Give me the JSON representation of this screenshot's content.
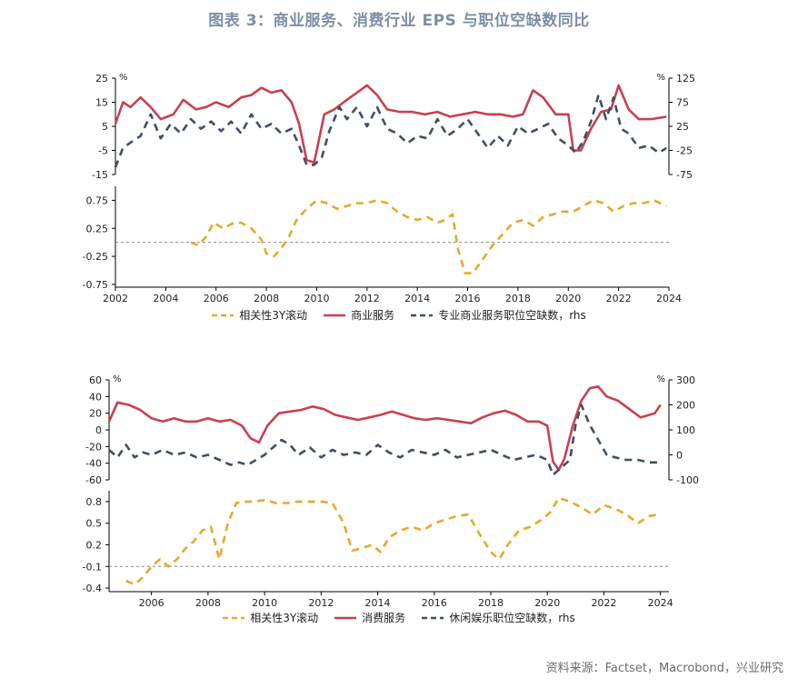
{
  "title": "图表 3：商业服务、消费行业 EPS 与职位空缺数同比",
  "source": "资料来源：Factset，Macrobond，兴业研究",
  "colors": {
    "corr": "#e7a82c",
    "eps": "#c94050",
    "jobs": "#3e4f66",
    "ref": "#888888"
  },
  "chart_data": [
    {
      "type": "line",
      "id": "chart1",
      "left_unit": "%",
      "right_unit": "%",
      "xticks": [
        "2002",
        "2004",
        "2006",
        "2008",
        "2010",
        "2012",
        "2014",
        "2016",
        "2018",
        "2020",
        "2022",
        "2024"
      ],
      "xlim": [
        2002,
        2024
      ],
      "top_panel": {
        "ylim": [
          -15,
          25
        ],
        "yticks": [
          "25",
          "15",
          "5",
          "-5",
          "-15"
        ],
        "y2lim": [
          -75,
          125
        ],
        "y2ticks": [
          "125",
          "75",
          "25",
          "-25",
          "-75"
        ],
        "series": [
          {
            "name": "商业服务",
            "axis": "left",
            "x": [
              2002.0,
              2002.3,
              2002.6,
              2003.0,
              2003.4,
              2003.8,
              2004.3,
              2004.7,
              2005.2,
              2005.6,
              2006.0,
              2006.5,
              2007.0,
              2007.4,
              2007.8,
              2008.2,
              2008.6,
              2009.0,
              2009.3,
              2009.6,
              2009.9,
              2010.3,
              2010.7,
              2011.2,
              2011.6,
              2012.0,
              2012.4,
              2012.8,
              2013.3,
              2013.8,
              2014.3,
              2014.8,
              2015.3,
              2015.8,
              2016.3,
              2016.8,
              2017.3,
              2017.8,
              2018.2,
              2018.6,
              2019.0,
              2019.5,
              2020.0,
              2020.2,
              2020.5,
              2020.9,
              2021.3,
              2021.7,
              2022.0,
              2022.4,
              2022.8,
              2023.3,
              2023.9
            ],
            "y": [
              6,
              15,
              13,
              17,
              13,
              8,
              10,
              16,
              12,
              13,
              15,
              13,
              17,
              18,
              21,
              19,
              20,
              15,
              6,
              -9,
              -10,
              10,
              12,
              16,
              19,
              22,
              18,
              12,
              11,
              11,
              10,
              11,
              9,
              10,
              11,
              10,
              10,
              9,
              10,
              20,
              17,
              10,
              10,
              -5,
              -5,
              4,
              11,
              12,
              22,
              12,
              8,
              8,
              9
            ]
          },
          {
            "name": "专业商业服务职位空缺数，rhs",
            "axis": "right",
            "x": [
              2002.0,
              2002.3,
              2002.7,
              2003.0,
              2003.4,
              2003.8,
              2004.2,
              2004.6,
              2005.0,
              2005.4,
              2005.8,
              2006.2,
              2006.6,
              2007.0,
              2007.4,
              2007.8,
              2008.2,
              2008.6,
              2009.0,
              2009.3,
              2009.6,
              2009.9,
              2010.2,
              2010.5,
              2010.9,
              2011.2,
              2011.6,
              2012.0,
              2012.4,
              2012.8,
              2013.2,
              2013.6,
              2014.0,
              2014.4,
              2014.8,
              2015.2,
              2015.6,
              2016.0,
              2016.4,
              2016.8,
              2017.2,
              2017.6,
              2018.0,
              2018.4,
              2018.8,
              2019.2,
              2019.6,
              2020.0,
              2020.3,
              2020.6,
              2020.9,
              2021.2,
              2021.5,
              2021.8,
              2022.1,
              2022.4,
              2022.8,
              2023.2,
              2023.6,
              2023.9
            ],
            "y": [
              -60,
              -20,
              -5,
              5,
              50,
              0,
              30,
              10,
              40,
              20,
              35,
              15,
              35,
              10,
              50,
              20,
              30,
              10,
              20,
              -15,
              -55,
              -55,
              -40,
              15,
              65,
              40,
              65,
              25,
              65,
              20,
              10,
              -10,
              5,
              0,
              40,
              5,
              20,
              40,
              10,
              -20,
              5,
              -15,
              25,
              10,
              20,
              30,
              0,
              -15,
              -30,
              -5,
              35,
              90,
              40,
              85,
              20,
              10,
              -20,
              -15,
              -30,
              -20
            ]
          }
        ]
      },
      "bottom_panel": {
        "ylim": [
          -0.8,
          1.0
        ],
        "yticks": [
          "0.75",
          "0.25",
          "-0.25",
          "-0.75"
        ],
        "reference_line": 0.0,
        "series": [
          {
            "name": "相关性3Y滚动",
            "axis": "left",
            "x": [
              2005.0,
              2005.3,
              2005.6,
              2005.9,
              2006.3,
              2006.7,
              2007.0,
              2007.4,
              2007.8,
              2008.0,
              2008.3,
              2008.6,
              2008.9,
              2009.2,
              2009.6,
              2010.0,
              2010.4,
              2010.8,
              2011.2,
              2011.6,
              2012.0,
              2012.4,
              2012.8,
              2013.2,
              2013.6,
              2014.0,
              2014.4,
              2014.8,
              2015.1,
              2015.4,
              2015.6,
              2015.9,
              2016.2,
              2016.6,
              2017.0,
              2017.4,
              2017.8,
              2018.2,
              2018.6,
              2019.0,
              2019.4,
              2019.8,
              2020.2,
              2020.6,
              2021.0,
              2021.4,
              2021.8,
              2022.2,
              2022.6,
              2023.0,
              2023.4,
              2023.9
            ],
            "y": [
              0.0,
              -0.05,
              0.1,
              0.35,
              0.25,
              0.35,
              0.35,
              0.25,
              0.05,
              -0.2,
              -0.25,
              -0.1,
              0.1,
              0.4,
              0.6,
              0.75,
              0.7,
              0.6,
              0.65,
              0.7,
              0.7,
              0.75,
              0.7,
              0.55,
              0.45,
              0.4,
              0.45,
              0.35,
              0.4,
              0.5,
              -0.1,
              -0.55,
              -0.55,
              -0.3,
              -0.05,
              0.15,
              0.35,
              0.4,
              0.3,
              0.45,
              0.5,
              0.55,
              0.55,
              0.65,
              0.75,
              0.7,
              0.55,
              0.65,
              0.7,
              0.7,
              0.75,
              0.65
            ]
          }
        ]
      },
      "legend": [
        "相关性3Y滚动",
        "商业服务",
        "专业商业服务职位空缺数，rhs"
      ]
    },
    {
      "type": "line",
      "id": "chart2",
      "left_unit": "%",
      "right_unit": "%",
      "xticks": [
        "2006",
        "2008",
        "2010",
        "2012",
        "2014",
        "2016",
        "2018",
        "2020",
        "2022",
        "2024"
      ],
      "xlim": [
        2004.5,
        2024.3
      ],
      "top_panel": {
        "ylim": [
          -60,
          60
        ],
        "yticks": [
          "60",
          "40",
          "20",
          "0",
          "-20",
          "-40",
          "-60"
        ],
        "y2lim": [
          -100,
          300
        ],
        "y2ticks": [
          "300",
          "200",
          "100",
          "0",
          "-100"
        ],
        "series": [
          {
            "name": "消费服务",
            "axis": "left",
            "x": [
              2004.5,
              2004.8,
              2005.2,
              2005.6,
              2006.0,
              2006.4,
              2006.8,
              2007.2,
              2007.6,
              2008.0,
              2008.4,
              2008.8,
              2009.2,
              2009.5,
              2009.8,
              2010.1,
              2010.5,
              2010.9,
              2011.3,
              2011.7,
              2012.1,
              2012.5,
              2012.9,
              2013.3,
              2013.7,
              2014.1,
              2014.5,
              2014.9,
              2015.3,
              2015.7,
              2016.1,
              2016.5,
              2016.9,
              2017.3,
              2017.7,
              2018.1,
              2018.5,
              2018.9,
              2019.3,
              2019.7,
              2020.0,
              2020.2,
              2020.4,
              2020.6,
              2020.9,
              2021.2,
              2021.5,
              2021.8,
              2022.1,
              2022.5,
              2022.9,
              2023.3,
              2023.8,
              2024.0
            ],
            "y": [
              10,
              33,
              30,
              24,
              14,
              10,
              14,
              10,
              10,
              14,
              10,
              12,
              5,
              -10,
              -15,
              5,
              20,
              22,
              24,
              28,
              25,
              18,
              15,
              12,
              15,
              18,
              22,
              18,
              14,
              12,
              14,
              12,
              10,
              8,
              15,
              20,
              23,
              18,
              10,
              10,
              5,
              -38,
              -48,
              -35,
              5,
              35,
              50,
              52,
              40,
              35,
              25,
              15,
              20,
              30
            ]
          },
          {
            "name": "休闲娱乐职位空缺数，rhs",
            "axis": "right",
            "x": [
              2004.5,
              2004.8,
              2005.1,
              2005.4,
              2005.7,
              2006.0,
              2006.4,
              2006.8,
              2007.2,
              2007.6,
              2008.0,
              2008.4,
              2008.8,
              2009.1,
              2009.4,
              2009.7,
              2010.0,
              2010.3,
              2010.6,
              2010.9,
              2011.2,
              2011.6,
              2012.0,
              2012.4,
              2012.8,
              2013.2,
              2013.6,
              2014.0,
              2014.4,
              2014.8,
              2015.2,
              2015.6,
              2016.0,
              2016.4,
              2016.8,
              2017.2,
              2017.6,
              2018.0,
              2018.4,
              2018.8,
              2019.2,
              2019.6,
              2020.0,
              2020.2,
              2020.4,
              2020.6,
              2020.8,
              2021.0,
              2021.2,
              2021.5,
              2021.8,
              2022.1,
              2022.4,
              2022.8,
              2023.2,
              2023.6,
              2023.9
            ],
            "y": [
              20,
              -10,
              40,
              -10,
              10,
              0,
              20,
              0,
              10,
              -10,
              0,
              -20,
              -40,
              -30,
              -40,
              -20,
              0,
              30,
              60,
              40,
              0,
              30,
              -10,
              20,
              0,
              10,
              0,
              40,
              10,
              -10,
              20,
              10,
              0,
              20,
              -10,
              0,
              10,
              20,
              0,
              -20,
              -10,
              0,
              -20,
              -80,
              -60,
              -40,
              -20,
              120,
              200,
              120,
              60,
              0,
              -10,
              -20,
              -20,
              -30,
              -30
            ]
          }
        ]
      },
      "bottom_panel": {
        "ylim": [
          -0.45,
          0.95
        ],
        "yticks": [
          "0.8",
          "0.5",
          "0.2",
          "-0.1",
          "-0.4"
        ],
        "reference_line": -0.1,
        "series": [
          {
            "name": "相关性3Y滚动",
            "axis": "left",
            "x": [
              2005.1,
              2005.4,
              2005.7,
              2006.0,
              2006.3,
              2006.6,
              2006.9,
              2007.2,
              2007.5,
              2007.8,
              2008.1,
              2008.4,
              2008.7,
              2009.0,
              2009.3,
              2009.6,
              2010.0,
              2010.4,
              2010.8,
              2011.2,
              2011.6,
              2012.0,
              2012.4,
              2012.8,
              2013.1,
              2013.4,
              2013.8,
              2014.1,
              2014.4,
              2014.8,
              2015.2,
              2015.6,
              2016.0,
              2016.4,
              2016.8,
              2017.2,
              2017.6,
              2018.0,
              2018.3,
              2018.6,
              2019.0,
              2019.4,
              2019.8,
              2020.1,
              2020.4,
              2020.8,
              2021.2,
              2021.6,
              2022.0,
              2022.4,
              2022.8,
              2023.2,
              2023.6,
              2023.9
            ],
            "y": [
              -0.3,
              -0.35,
              -0.25,
              -0.1,
              0.0,
              -0.1,
              0.0,
              0.15,
              0.25,
              0.4,
              0.45,
              0.0,
              0.5,
              0.78,
              0.8,
              0.8,
              0.82,
              0.78,
              0.78,
              0.8,
              0.8,
              0.8,
              0.78,
              0.5,
              0.12,
              0.15,
              0.2,
              0.1,
              0.3,
              0.4,
              0.45,
              0.4,
              0.5,
              0.55,
              0.6,
              0.62,
              0.35,
              0.1,
              0.0,
              0.2,
              0.4,
              0.45,
              0.55,
              0.65,
              0.85,
              0.8,
              0.72,
              0.62,
              0.75,
              0.7,
              0.62,
              0.5,
              0.6,
              0.62
            ]
          }
        ]
      },
      "legend": [
        "相关性3Y滚动",
        "消费服务",
        "休闲娱乐职位空缺数，rhs"
      ]
    }
  ]
}
